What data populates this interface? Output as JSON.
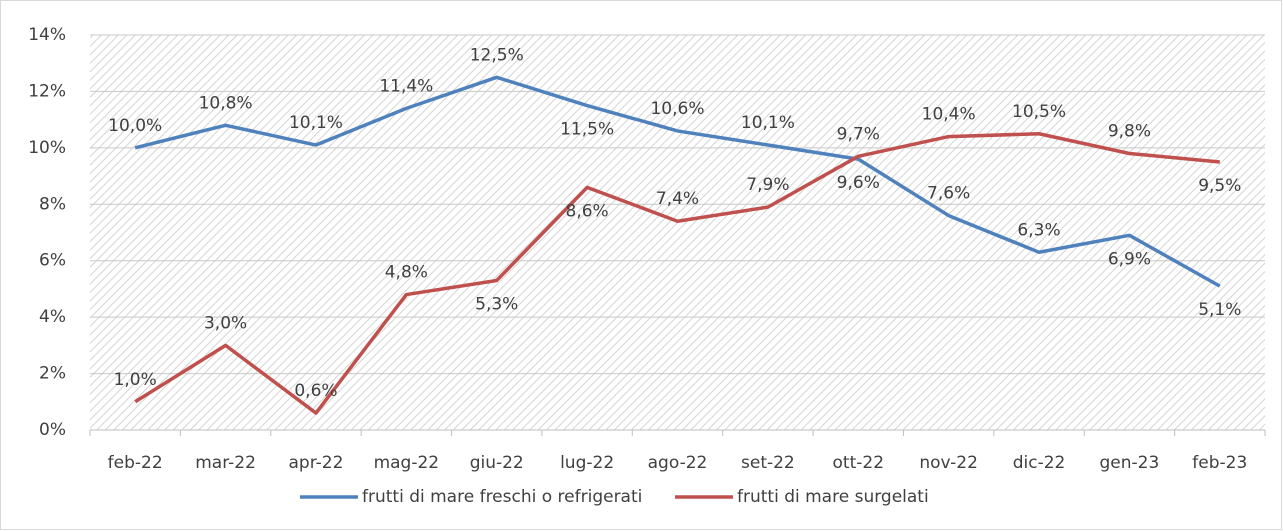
{
  "chart_data": {
    "type": "line",
    "categories": [
      "feb-22",
      "mar-22",
      "apr-22",
      "mag-22",
      "giu-22",
      "lug-22",
      "ago-22",
      "set-22",
      "ott-22",
      "nov-22",
      "dic-22",
      "gen-23",
      "feb-23"
    ],
    "series": [
      {
        "name": "frutti di mare freschi o refrigerati",
        "color": "#4f81bd",
        "values": [
          10.0,
          10.8,
          10.1,
          11.4,
          12.5,
          11.5,
          10.6,
          10.1,
          9.6,
          7.6,
          6.3,
          6.9,
          5.1
        ],
        "value_labels": [
          "10,0%",
          "10,8%",
          "10,1%",
          "11,4%",
          "12,5%",
          "11,5%",
          "10,6%",
          "10,1%",
          "9,6%",
          "7,6%",
          "6,3%",
          "6,9%",
          "5,1%"
        ]
      },
      {
        "name": "frutti di mare surgelati",
        "color": "#c0504d",
        "values": [
          1.0,
          3.0,
          0.6,
          4.8,
          5.3,
          8.6,
          7.4,
          7.9,
          9.7,
          10.4,
          10.5,
          9.8,
          9.5
        ],
        "value_labels": [
          "1,0%",
          "3,0%",
          "0,6%",
          "4,8%",
          "5,3%",
          "8,6%",
          "7,4%",
          "7,9%",
          "9,7%",
          "10,4%",
          "10,5%",
          "9,8%",
          "9,5%"
        ]
      }
    ],
    "ylim": [
      0,
      14
    ],
    "yticks": [
      {
        "value": 0,
        "label": "0%"
      },
      {
        "value": 2,
        "label": "2%"
      },
      {
        "value": 4,
        "label": "4%"
      },
      {
        "value": 6,
        "label": "6%"
      },
      {
        "value": 8,
        "label": "8%"
      },
      {
        "value": 10,
        "label": "10%"
      },
      {
        "value": 12,
        "label": "12%"
      },
      {
        "value": 14,
        "label": "14%"
      }
    ],
    "grid": true
  }
}
